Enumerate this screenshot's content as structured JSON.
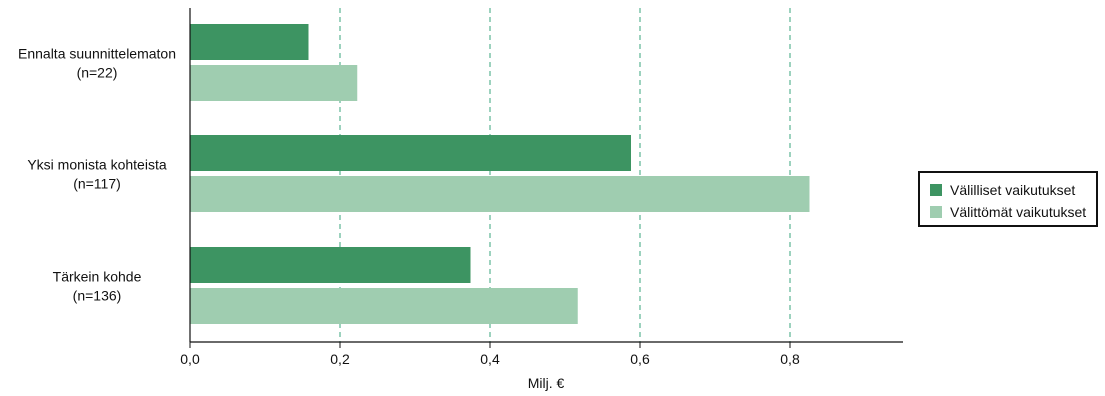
{
  "chart_data": {
    "type": "bar",
    "orientation": "horizontal",
    "categories": [
      [
        "Ennalta suunnittelematon",
        "(n=22)"
      ],
      [
        "Yksi monista kohteista",
        "(n=117)"
      ],
      [
        "Tärkein kohde",
        "(n=136)"
      ]
    ],
    "series": [
      {
        "name": "Välilliset vaikutukset",
        "color": "#3d9462",
        "values": [
          0.158,
          0.588,
          0.374
        ]
      },
      {
        "name": "Välittömät vaikutukset",
        "color": "#9fcdb0",
        "values": [
          0.223,
          0.826,
          0.517
        ]
      }
    ],
    "xlabel": "Milj. €",
    "xlim": [
      0,
      0.95
    ],
    "xticks": [
      0,
      0.2,
      0.4,
      0.6,
      0.8
    ],
    "xtick_labels": [
      "0,0",
      "0,2",
      "0,4",
      "0,6",
      "0,8"
    ],
    "grid": {
      "vertical": true,
      "style": "dashed",
      "color": "#3aa57d"
    },
    "legend_position": "right"
  }
}
